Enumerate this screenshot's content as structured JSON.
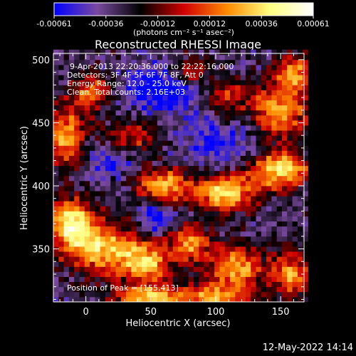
{
  "chart_data": {
    "type": "heatmap",
    "title": "Reconstructed RHESSI Image",
    "xlabel": "Heliocentric X (arcsec)",
    "ylabel": "Heliocentric Y (arcsec)",
    "xlim": [
      -25,
      168
    ],
    "ylim": [
      308,
      505
    ],
    "xticks": [
      0,
      50,
      100,
      150
    ],
    "yticks": [
      350,
      400,
      450,
      500
    ],
    "colorbar": {
      "range": [
        -0.00061,
        0.00061
      ],
      "ticks": [
        "-0.00061",
        "-0.00036",
        "-0.00012",
        "0.00012",
        "0.00036",
        "0.00061"
      ],
      "label": "(photons cm⁻² s⁻¹ asec⁻²)",
      "colormap": [
        "#0000ff",
        "#7a4aa0",
        "#000000",
        "#d00000",
        "#ff8a00",
        "#ffff80",
        "#ffffff"
      ]
    },
    "annotations": [
      "9-Apr-2013 22:20:36.000 to 22:22:16.000",
      "Detectors: 3F 4F 5F 6F 7F 8F, Att 0",
      "Energy Range: 12.0 - 25.0 keV",
      "Clean.  Total counts: 2.16E+03"
    ],
    "peak_label": "Position of Peak = [155,413]",
    "blobs": [
      {
        "x": 150,
        "y": 413,
        "sx": 14,
        "sy": 10,
        "a": 1.0
      },
      {
        "x": 60,
        "y": 400,
        "sx": 14,
        "sy": 9,
        "a": 0.85
      },
      {
        "x": 108,
        "y": 395,
        "sx": 16,
        "sy": 10,
        "a": 0.95
      },
      {
        "x": -12,
        "y": 372,
        "sx": 12,
        "sy": 14,
        "a": 0.9
      },
      {
        "x": 10,
        "y": 352,
        "sx": 18,
        "sy": 14,
        "a": 0.85
      },
      {
        "x": 45,
        "y": 340,
        "sx": 14,
        "sy": 12,
        "a": 0.8
      },
      {
        "x": 80,
        "y": 355,
        "sx": 12,
        "sy": 10,
        "a": 0.7
      },
      {
        "x": 115,
        "y": 335,
        "sx": 14,
        "sy": 12,
        "a": 0.75
      },
      {
        "x": 158,
        "y": 330,
        "sx": 12,
        "sy": 12,
        "a": 0.7
      },
      {
        "x": 150,
        "y": 460,
        "sx": 14,
        "sy": 14,
        "a": 0.8
      },
      {
        "x": 160,
        "y": 490,
        "sx": 10,
        "sy": 10,
        "a": 0.7
      },
      {
        "x": -15,
        "y": 440,
        "sx": 10,
        "sy": 16,
        "a": 0.75
      },
      {
        "x": 5,
        "y": 475,
        "sx": 10,
        "sy": 10,
        "a": 0.6
      },
      {
        "x": 80,
        "y": 490,
        "sx": 12,
        "sy": 8,
        "a": 0.6
      },
      {
        "x": 110,
        "y": 470,
        "sx": 12,
        "sy": 10,
        "a": 0.5
      },
      {
        "x": 50,
        "y": 310,
        "sx": 20,
        "sy": 8,
        "a": 0.8
      },
      {
        "x": 100,
        "y": 312,
        "sx": 18,
        "sy": 7,
        "a": 0.7
      },
      {
        "x": 35,
        "y": 440,
        "sx": 14,
        "sy": 10,
        "a": 0.45
      }
    ],
    "cold_regions": [
      {
        "x": 60,
        "y": 478,
        "sx": 22,
        "sy": 14,
        "a": 0.9
      },
      {
        "x": 55,
        "y": 375,
        "sx": 10,
        "sy": 8,
        "a": 0.8
      },
      {
        "x": 100,
        "y": 435,
        "sx": 18,
        "sy": 12,
        "a": 0.6
      },
      {
        "x": 20,
        "y": 420,
        "sx": 12,
        "sy": 10,
        "a": 0.5
      }
    ]
  },
  "timestamp": "12-May-2022 14:14"
}
